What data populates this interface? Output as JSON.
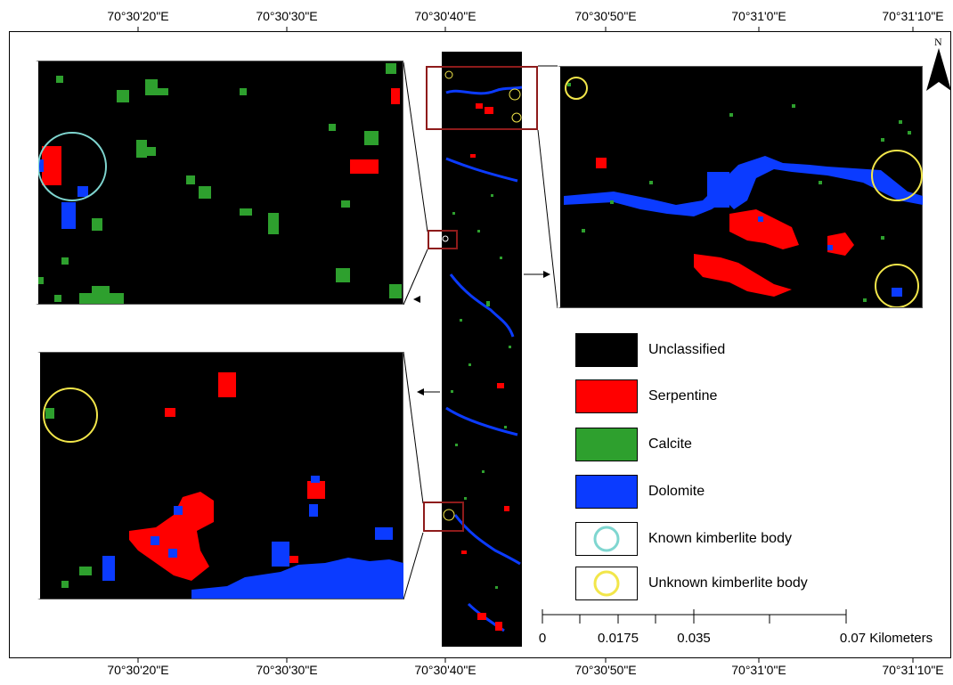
{
  "top_coordinates": [
    "70°30'20\"E",
    "70°30'30\"E",
    "70°30'40\"E",
    "70°30'50\"E",
    "70°31'0\"E",
    "70°31'10\"E"
  ],
  "bottom_coordinates": [
    "70°30'20\"E",
    "70°30'30\"E",
    "70°30'40\"E",
    "70°30'50\"E",
    "70°31'0\"E",
    "70°31'10\"E"
  ],
  "north_label": "N",
  "legend": [
    {
      "label": "Unclassified",
      "color": "#000000",
      "kind": "swatch"
    },
    {
      "label": "Serpentine",
      "color": "#ff0000",
      "kind": "swatch"
    },
    {
      "label": "Calcite",
      "color": "#2ea02e",
      "kind": "swatch"
    },
    {
      "label": "Dolomite",
      "color": "#0b3bff",
      "kind": "swatch"
    },
    {
      "label": "Known kimberlite body",
      "color": "#7fd6d0",
      "kind": "circle"
    },
    {
      "label": "Unknown kimberlite body",
      "color": "#f2e64a",
      "kind": "circle"
    }
  ],
  "scale_bar": {
    "labels": [
      "0",
      "0.0175",
      "0.035",
      "0.07 Kilometers"
    ]
  },
  "colors": {
    "serpentine": "#ff0000",
    "calcite": "#2ea02e",
    "dolomite": "#0b3bff",
    "known_circle": "#7fd6d0",
    "unknown_circle": "#f2e64a",
    "inset_box": "#8e1b1b"
  }
}
